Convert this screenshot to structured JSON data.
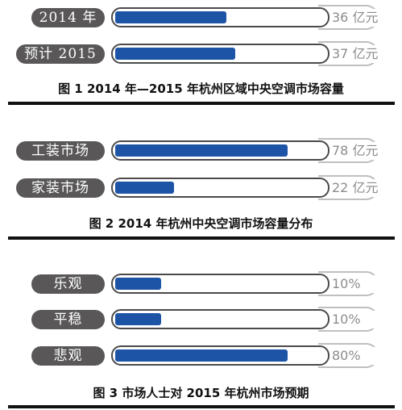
{
  "chart_data": [
    {
      "type": "bar",
      "title": "图 1   2014 年—2015 年杭州区域中央空调市场容量",
      "categories": [
        "2014 年",
        "预计 2015 年"
      ],
      "values": [
        36,
        37
      ],
      "value_labels": [
        "36 亿元",
        "37 亿元"
      ],
      "fill_fractions": [
        0.53,
        0.57
      ],
      "colors": {
        "bar": "#1d54a6",
        "label_bg": "#595757",
        "value_text": "#8c8c8c"
      }
    },
    {
      "type": "bar",
      "title": "图 2   2014 年杭州中央空调市场容量分布",
      "categories": [
        "工装市场",
        "家装市场"
      ],
      "values": [
        78,
        22
      ],
      "value_labels": [
        "78 亿元",
        "22 亿元"
      ],
      "fill_fractions": [
        0.82,
        0.28
      ],
      "colors": {
        "bar": "#1d54a6",
        "label_bg": "#595757",
        "value_text": "#8c8c8c"
      }
    },
    {
      "type": "bar",
      "title": "图 3   市场人士对 2015 年杭州市场预期",
      "categories": [
        "乐观",
        "平稳",
        "悲观"
      ],
      "values": [
        10,
        10,
        80
      ],
      "value_labels": [
        "10%",
        "10%",
        "80%"
      ],
      "fill_fractions": [
        0.22,
        0.22,
        0.82
      ],
      "colors": {
        "bar": "#1d54a6",
        "label_bg": "#595757",
        "value_text": "#8c8c8c"
      }
    }
  ]
}
